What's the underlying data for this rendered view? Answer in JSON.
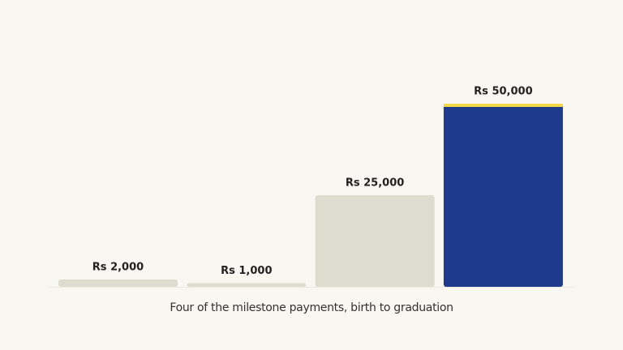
{
  "chart_data": {
    "type": "bar",
    "caption": "Four of the milestone payments, birth to graduation",
    "categories": [
      null,
      null,
      null,
      null
    ],
    "values": [
      2000,
      1000,
      25000,
      50000
    ],
    "value_labels": [
      "Rs 2,000",
      "Rs 1,000",
      "Rs 25,000",
      "Rs 50,000"
    ],
    "colors": [
      "#dedbcf",
      "#dedbcf",
      "#dedbcf",
      "#1e3a8a"
    ],
    "highlight": 3,
    "highlight_accent": "#f3d94a",
    "ylim": [
      0,
      50000
    ]
  }
}
